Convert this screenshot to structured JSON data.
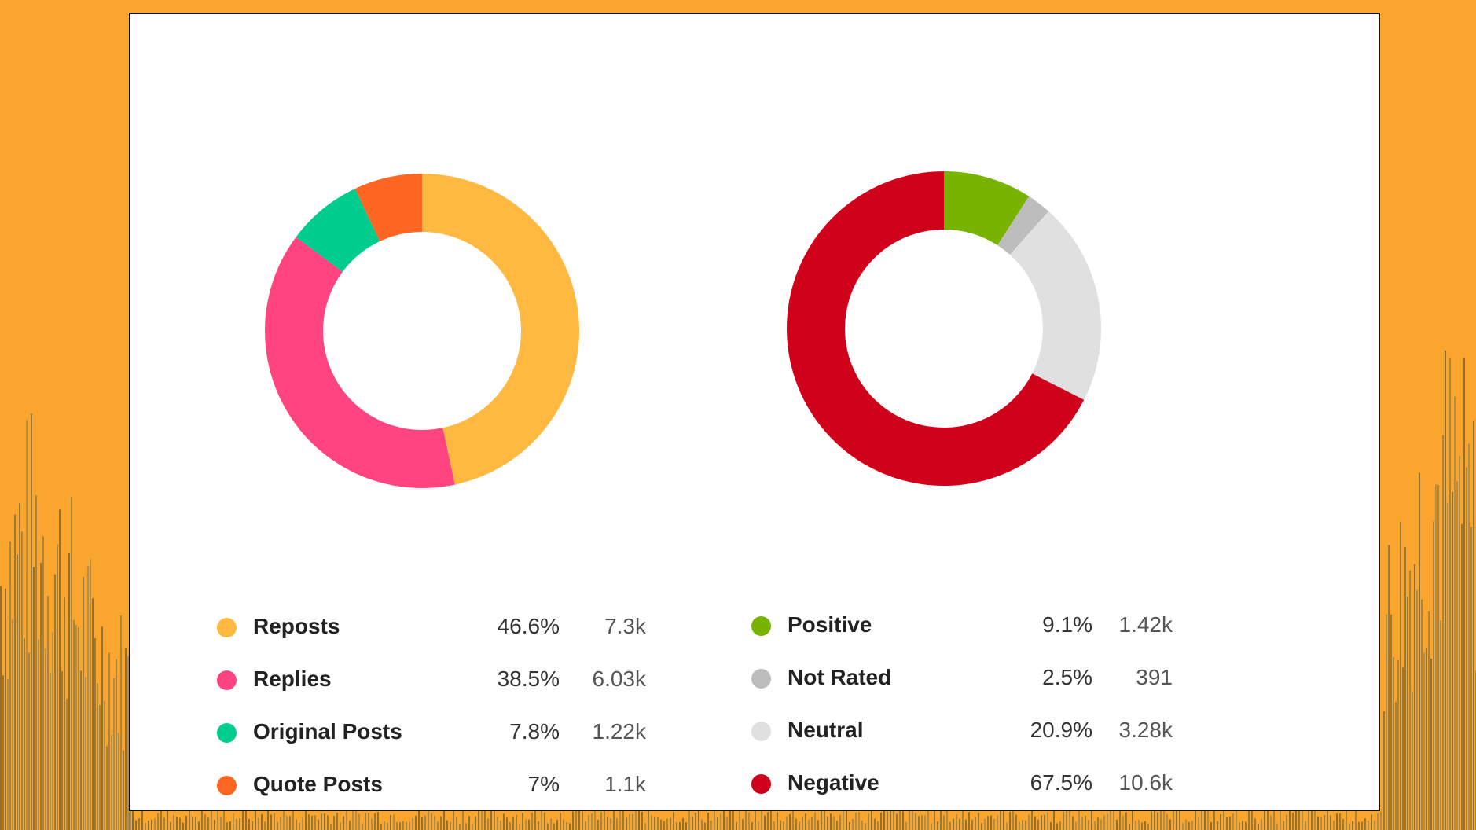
{
  "colors": {
    "background": "#F9A52E",
    "panel": "#FFFFFF"
  },
  "chart_data": [
    {
      "type": "pie",
      "donut": true,
      "categories": [
        "Reposts",
        "Replies",
        "Original Posts",
        "Quote Posts"
      ],
      "values": [
        46.6,
        38.5,
        7.8,
        7
      ],
      "display_percent": [
        "46.6%",
        "38.5%",
        "7.8%",
        "7%"
      ],
      "display_count": [
        "7.3k",
        "6.03k",
        "1.22k",
        "1.1k"
      ],
      "colors": [
        "#FFB840",
        "#FF4480",
        "#00CC8E",
        "#FF6622"
      ],
      "legend_position": "bottom"
    },
    {
      "type": "pie",
      "donut": true,
      "categories": [
        "Positive",
        "Not Rated",
        "Neutral",
        "Negative"
      ],
      "values": [
        9.1,
        2.5,
        20.9,
        67.5
      ],
      "display_percent": [
        "9.1%",
        "2.5%",
        "20.9%",
        "67.5%"
      ],
      "display_count": [
        "1.42k",
        "391",
        "3.28k",
        "10.6k"
      ],
      "colors": [
        "#77B300",
        "#BDBDBD",
        "#E0E0E0",
        "#D0011B"
      ],
      "legend_position": "bottom"
    }
  ]
}
